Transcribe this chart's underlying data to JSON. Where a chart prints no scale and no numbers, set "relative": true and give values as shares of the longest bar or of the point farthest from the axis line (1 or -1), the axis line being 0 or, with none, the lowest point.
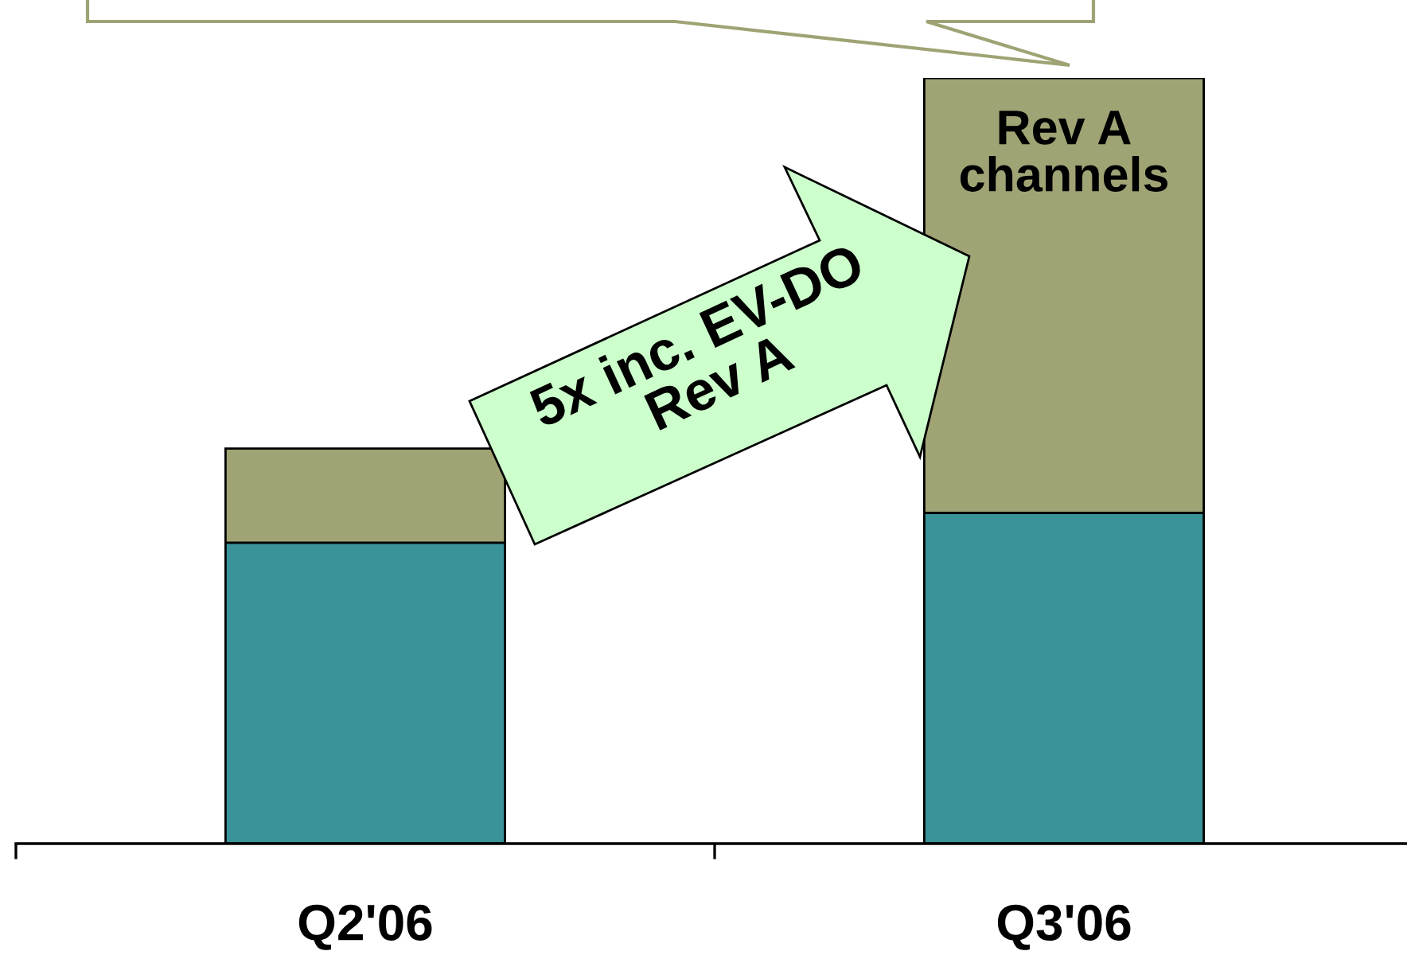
{
  "chart_data": {
    "type": "bar",
    "categories": [
      "Q2'06",
      "Q3'06"
    ],
    "stacked": true,
    "relative": true,
    "series": [
      {
        "color": "#3a9399",
        "values": [
          0.393,
          0.432
        ]
      },
      {
        "name": "Rev A channels",
        "color": "#a0a475",
        "values": [
          0.123,
          0.568
        ]
      }
    ],
    "annotations": [
      "5x inc. EV-DO\nRev A"
    ]
  }
}
